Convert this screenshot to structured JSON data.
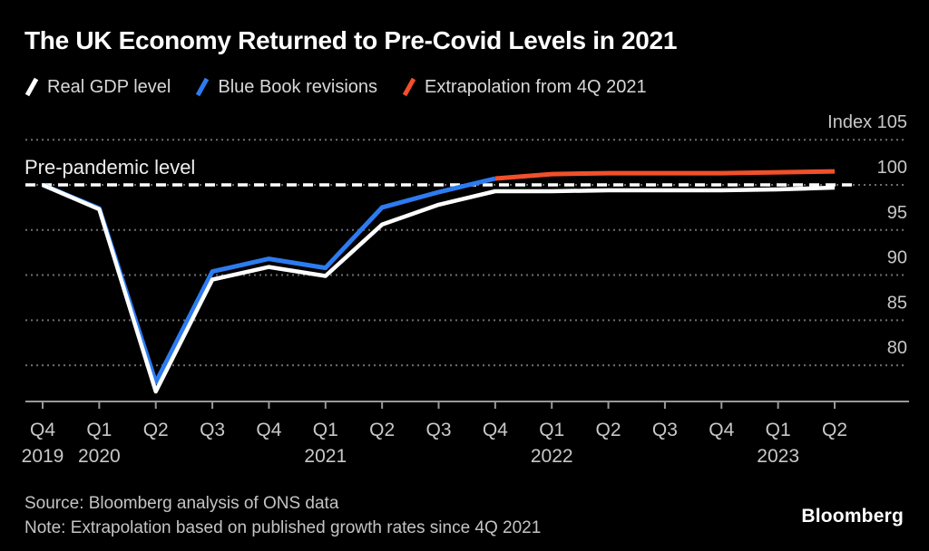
{
  "title": "The UK Economy Returned to Pre-Covid Levels in 2021",
  "legend": {
    "items": [
      {
        "label": "Real GDP level",
        "color": "#ffffff"
      },
      {
        "label": "Blue Book revisions",
        "color": "#2d7bf0"
      },
      {
        "label": "Extrapolation from 4Q 2021",
        "color": "#f0502b"
      }
    ]
  },
  "annotation": {
    "pre_pandemic_label": "Pre-pandemic level"
  },
  "footer": {
    "source": "Source: Bloomberg analysis of ONS data",
    "note": "Note: Extrapolation based on published growth rates since 4Q 2021",
    "brand": "Bloomberg"
  },
  "chart_data": {
    "type": "line",
    "title": "The UK Economy Returned to Pre-Covid Levels in 2021",
    "xlabel": "",
    "ylabel": "Index",
    "ylim": [
      76,
      106
    ],
    "grid": "dotted-horizontal",
    "legend_position": "top-left",
    "x_categories": [
      {
        "quarter": "Q4",
        "year": "2019"
      },
      {
        "quarter": "Q1",
        "year": "2020"
      },
      {
        "quarter": "Q2",
        "year": ""
      },
      {
        "quarter": "Q3",
        "year": ""
      },
      {
        "quarter": "Q4",
        "year": ""
      },
      {
        "quarter": "Q1",
        "year": "2021"
      },
      {
        "quarter": "Q2",
        "year": ""
      },
      {
        "quarter": "Q3",
        "year": ""
      },
      {
        "quarter": "Q4",
        "year": ""
      },
      {
        "quarter": "Q1",
        "year": "2022"
      },
      {
        "quarter": "Q2",
        "year": ""
      },
      {
        "quarter": "Q3",
        "year": ""
      },
      {
        "quarter": "Q4",
        "year": ""
      },
      {
        "quarter": "Q1",
        "year": "2023"
      },
      {
        "quarter": "Q2",
        "year": ""
      }
    ],
    "y_ticks": [
      {
        "label": "Index 105",
        "value": 105
      },
      {
        "label": "100",
        "value": 100
      },
      {
        "label": "95",
        "value": 95
      },
      {
        "label": "90",
        "value": 90
      },
      {
        "label": "85",
        "value": 85
      },
      {
        "label": "80",
        "value": 80
      }
    ],
    "reference_line": {
      "label": "Pre-pandemic level",
      "value": 100,
      "style": "dashed",
      "color": "#ffffff"
    },
    "series": [
      {
        "name": "Blue Book revisions",
        "color": "#2d7bf0",
        "start_index": 0,
        "width": 5,
        "values": [
          100,
          97.4,
          78.1,
          90.4,
          91.8,
          90.8,
          97.5,
          99.2,
          100.7
        ]
      },
      {
        "name": "Real GDP level",
        "color": "#ffffff",
        "start_index": 0,
        "width": 4.5,
        "values": [
          100,
          97.3,
          77.1,
          89.5,
          90.9,
          89.9,
          95.6,
          97.8,
          99.3,
          99.3,
          99.4,
          99.4,
          99.4,
          99.5,
          99.7
        ]
      },
      {
        "name": "Extrapolation from 4Q 2021",
        "color": "#f0502b",
        "start_index": 8,
        "width": 5,
        "values": [
          100.7,
          101.2,
          101.3,
          101.3,
          101.3,
          101.4,
          101.5
        ]
      }
    ]
  }
}
